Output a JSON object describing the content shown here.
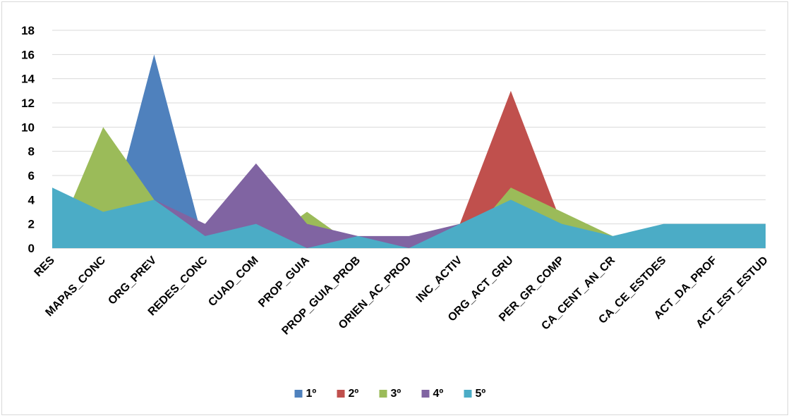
{
  "chart_data": {
    "type": "area",
    "title": "",
    "xlabel": "",
    "ylabel": "",
    "ylim": [
      0,
      18
    ],
    "yticks": [
      0,
      2,
      4,
      6,
      8,
      10,
      12,
      14,
      16,
      18
    ],
    "grid": true,
    "legend_position": "bottom",
    "categories": [
      "RES",
      "MAPAS_CONC",
      "ORG_PREV",
      "REDES_CONC",
      "CUAD_COM",
      "PROP_GUIA",
      "PROP_GUIA_PROB",
      "ORIEN_AC_PROD",
      "INC_ACTIV",
      "ORG_ACT_GRU",
      "PER_GR_COMP",
      "CA_CENT_AN_CR",
      "CA_CE_ESTDES",
      "ACT_DA_PROF",
      "ACT_EST_ESTUD"
    ],
    "series": [
      {
        "name": "1º",
        "color": "#4f81bd",
        "values": [
          0,
          0,
          16,
          0,
          0,
          0,
          0,
          0,
          0,
          0,
          0,
          0,
          0,
          0,
          0
        ]
      },
      {
        "name": "2º",
        "color": "#c0504d",
        "values": [
          0,
          0,
          0,
          0,
          0,
          0,
          0,
          0,
          2,
          13,
          2,
          0,
          0,
          0,
          0
        ]
      },
      {
        "name": "3º",
        "color": "#9bbb59",
        "values": [
          0,
          10,
          4,
          0,
          0,
          3,
          0,
          0,
          0,
          5,
          3,
          1,
          0,
          0,
          0
        ]
      },
      {
        "name": "4º",
        "color": "#8064a2",
        "values": [
          0,
          0,
          4,
          2,
          7,
          2,
          1,
          1,
          2,
          0,
          0,
          0,
          0,
          0,
          0
        ]
      },
      {
        "name": "5º",
        "color": "#4bacc6",
        "values": [
          5,
          3,
          4,
          1,
          2,
          0,
          1,
          0,
          2,
          4,
          2,
          1,
          2,
          2,
          2
        ]
      }
    ]
  }
}
